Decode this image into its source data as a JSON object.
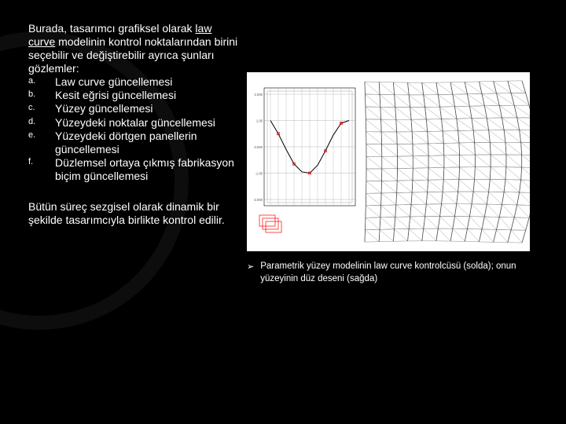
{
  "intro": {
    "part1": "Burada, tasarımcı grafiksel olarak ",
    "underlined": "law curve",
    "part2": " modelinin kontrol noktalarından birini seçebilir ve değiştirebilir ayrıca şunları gözlemler:"
  },
  "list_items": [
    {
      "marker": "a.",
      "text": "Law curve güncellemesi"
    },
    {
      "marker": "b.",
      "text": "Kesit eğrisi güncellemesi"
    },
    {
      "marker": "c.",
      "text": "Yüzey güncellemesi"
    },
    {
      "marker": "d.",
      "text": "Yüzeydeki noktalar güncellemesi"
    },
    {
      "marker": "e.",
      "text": "Yüzeydeki dörtgen panellerin güncellemesi"
    },
    {
      "marker": "f.",
      "text": "Düzlemsel ortaya çıkmış fabrikasyon biçim güncellemesi"
    }
  ],
  "conclusion": "Bütün süreç sezgisel olarak dinamik bir şekilde tasarımcıyla birlikte kontrol edilir.",
  "caption_bullet": "➢",
  "caption": "Parametrik yüzey modelinin law curve kontrolcüsü (solda); onun yüzeyinin düz deseni (sağda)",
  "chart": {
    "type": "line",
    "x": [
      0,
      1,
      2,
      3,
      4,
      5,
      6,
      7,
      8,
      9,
      10
    ],
    "y": [
      1.0,
      0.5,
      -0.1,
      -0.65,
      -0.95,
      -1.0,
      -0.7,
      -0.15,
      0.45,
      0.9,
      1.0
    ],
    "ylabels": [
      "2.000",
      "1.00",
      "0.000",
      "-1.00",
      "-2.000"
    ],
    "ylim": [
      -2,
      2
    ],
    "xlim": [
      0,
      10
    ],
    "line_color": "#000000",
    "grid_color": "#888888",
    "background": "#ffffff",
    "marker_color": "#ff0000",
    "control_box_color": "#ff0000",
    "panel_line_color": "#888888"
  }
}
